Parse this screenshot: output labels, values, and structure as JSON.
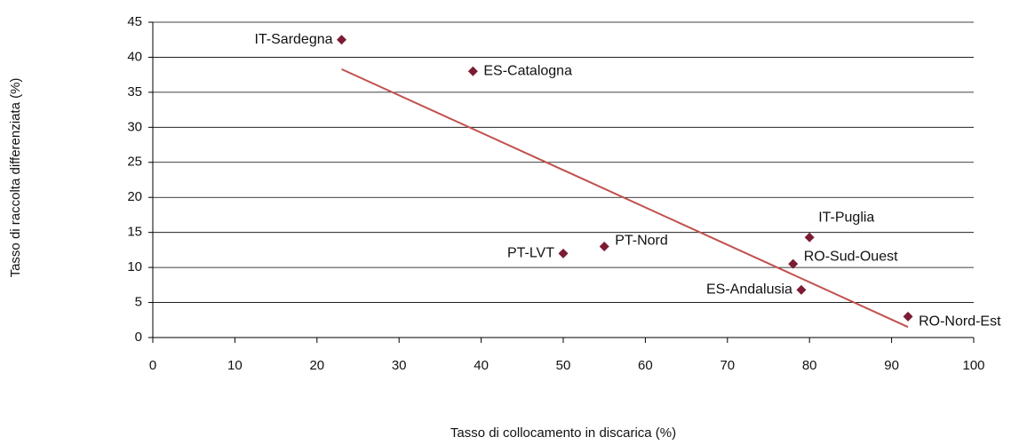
{
  "chart_data": {
    "type": "scatter",
    "xlabel": "Tasso di collocamento in discarica (%)",
    "ylabel": "Tasso di raccolta differenziata (%)",
    "series": [
      {
        "color": "#7b1c33",
        "labels": [
          "IT-Sardegna",
          "ES-Catalogna",
          "PT-LVT",
          "PT-Nord",
          "IT-Puglia",
          "RO-Sud-Ouest",
          "ES-Andalusia",
          "RO-Nord-Est"
        ],
        "x": [
          23,
          39,
          50,
          55,
          80,
          78,
          79,
          92
        ],
        "y": [
          42.5,
          38,
          12,
          13,
          14.3,
          10.5,
          6.8,
          3
        ]
      }
    ],
    "trendline": {
      "color": "#c0504d",
      "x": [
        23,
        92
      ],
      "y": [
        38.3,
        1.5
      ]
    },
    "xlim": [
      0,
      100
    ],
    "xticks": [
      0,
      10,
      20,
      30,
      40,
      50,
      60,
      70,
      80,
      90,
      100
    ],
    "ylim": [
      0,
      45
    ],
    "yticks": [
      0,
      5,
      10,
      15,
      20,
      25,
      30,
      35,
      40,
      45
    ],
    "grid": true
  }
}
